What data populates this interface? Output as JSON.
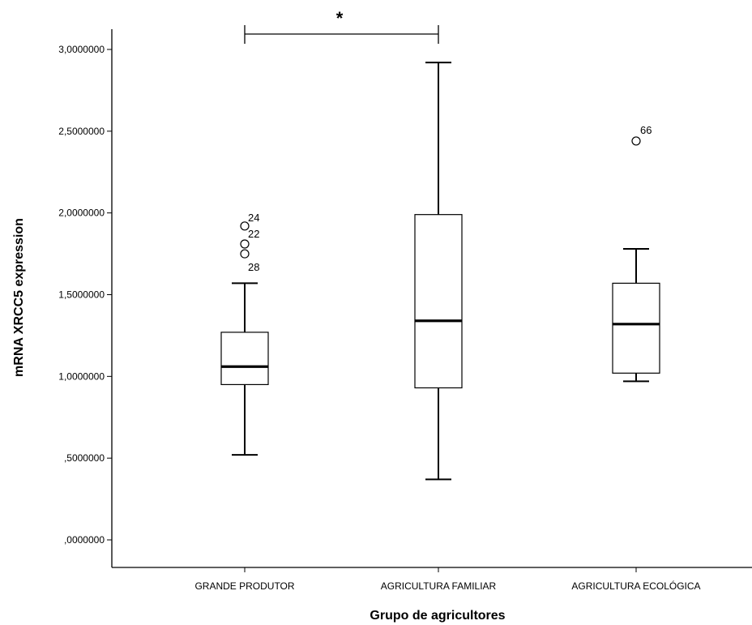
{
  "chart_data": {
    "type": "boxplot",
    "xlabel": "Grupo de agricultores",
    "ylabel": "mRNA XRCC5 expression",
    "ylim": [
      0,
      3.0
    ],
    "yticks": [
      {
        "value": 0.0,
        "label": ",0000000"
      },
      {
        "value": 0.5,
        "label": ",5000000"
      },
      {
        "value": 1.0,
        "label": "1,0000000"
      },
      {
        "value": 1.5,
        "label": "1,5000000"
      },
      {
        "value": 2.0,
        "label": "2,0000000"
      },
      {
        "value": 2.5,
        "label": "2,5000000"
      },
      {
        "value": 3.0,
        "label": "3,0000000"
      }
    ],
    "grid": false,
    "categories": [
      "GRANDE PRODUTOR",
      "AGRICULTURA FAMILIAR",
      "AGRICULTURA ECOLÓGICA"
    ],
    "boxes": [
      {
        "category": "GRANDE PRODUTOR",
        "whisker_low": 0.52,
        "q1": 0.95,
        "median": 1.06,
        "q3": 1.27,
        "whisker_high": 1.57,
        "outliers": [
          {
            "value": 1.92,
            "label": "24"
          },
          {
            "value": 1.81,
            "label": "22"
          },
          {
            "value": 1.75,
            "label": "28"
          }
        ]
      },
      {
        "category": "AGRICULTURA FAMILIAR",
        "whisker_low": 0.37,
        "q1": 0.93,
        "median": 1.34,
        "q3": 1.99,
        "whisker_high": 2.92,
        "outliers": []
      },
      {
        "category": "AGRICULTURA ECOLÓGICA",
        "whisker_low": 0.97,
        "q1": 1.02,
        "median": 1.32,
        "q3": 1.57,
        "whisker_high": 1.78,
        "outliers": [
          {
            "value": 2.44,
            "label": "66"
          }
        ]
      }
    ],
    "annotations": [
      {
        "type": "significance",
        "from": "GRANDE PRODUTOR",
        "to": "AGRICULTURA FAMILIAR",
        "label": "*"
      }
    ]
  }
}
